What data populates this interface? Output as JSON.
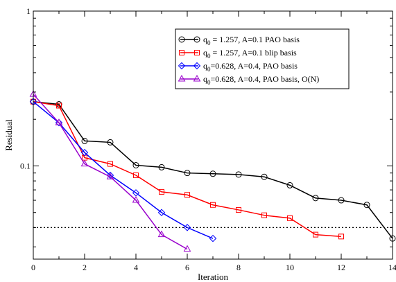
{
  "chart_data": {
    "type": "line",
    "title": "",
    "xlabel": "Iteration",
    "ylabel": "Residual",
    "xlim": [
      0,
      14
    ],
    "ylim": [
      0.025,
      1
    ],
    "y_scale": "log",
    "grid": false,
    "legend_position": "top-right",
    "x_ticks": [
      0,
      2,
      4,
      6,
      8,
      10,
      12,
      14
    ],
    "x_tick_labels": [
      "0",
      "2",
      "4",
      "6",
      "8",
      "10",
      "12",
      "14"
    ],
    "y_ticks": [
      0.1,
      1
    ],
    "y_tick_labels": [
      "0.1",
      "1"
    ],
    "reference_line": {
      "y": 0.04,
      "style": "dotted",
      "color": "#000000"
    },
    "series": [
      {
        "name": "q0 = 1.257, A=0.1 PAO basis",
        "legend": {
          "main": "q",
          "sub": "0",
          "rest": " = 1.257, A=0.1 PAO basis"
        },
        "color": "#000000",
        "marker": "circle",
        "x": [
          0,
          1,
          2,
          3,
          4,
          5,
          6,
          7,
          8,
          9,
          10,
          11,
          12,
          13,
          14
        ],
        "y": [
          0.26,
          0.25,
          0.145,
          0.142,
          0.101,
          0.098,
          0.09,
          0.089,
          0.088,
          0.085,
          0.075,
          0.062,
          0.06,
          0.056,
          0.034
        ]
      },
      {
        "name": "q0 = 1.257, A=0.1 blip basis",
        "legend": {
          "main": "q",
          "sub": "0",
          "rest": " = 1.257, A=0.1 blip basis"
        },
        "color": "#ff0000",
        "marker": "square",
        "x": [
          0,
          1,
          2,
          3,
          4,
          5,
          6,
          7,
          8,
          9,
          10,
          11,
          12
        ],
        "y": [
          0.26,
          0.245,
          0.113,
          0.103,
          0.087,
          0.068,
          0.065,
          0.056,
          0.052,
          0.048,
          0.046,
          0.036,
          0.035
        ]
      },
      {
        "name": "q0=0.628, A=0.4, PAO basis",
        "legend": {
          "main": "q",
          "sub": "0",
          "rest": "=0.628, A=0.4, PAO basis"
        },
        "color": "#0000ff",
        "marker": "diamond",
        "x": [
          0,
          1,
          2,
          3,
          4,
          5,
          6,
          7
        ],
        "y": [
          0.26,
          0.19,
          0.122,
          0.087,
          0.067,
          0.05,
          0.04,
          0.034
        ]
      },
      {
        "name": "q0=0.628, A=0.4, PAO basis, O(N)",
        "legend": {
          "main": "q",
          "sub": "0",
          "rest": "=0.628, A=0.4, PAO basis, O(N)"
        },
        "color": "#9900cc",
        "marker": "triangle",
        "x": [
          0,
          1,
          2,
          3,
          4,
          5,
          6
        ],
        "y": [
          0.29,
          0.19,
          0.103,
          0.085,
          0.06,
          0.036,
          0.029
        ]
      }
    ]
  }
}
